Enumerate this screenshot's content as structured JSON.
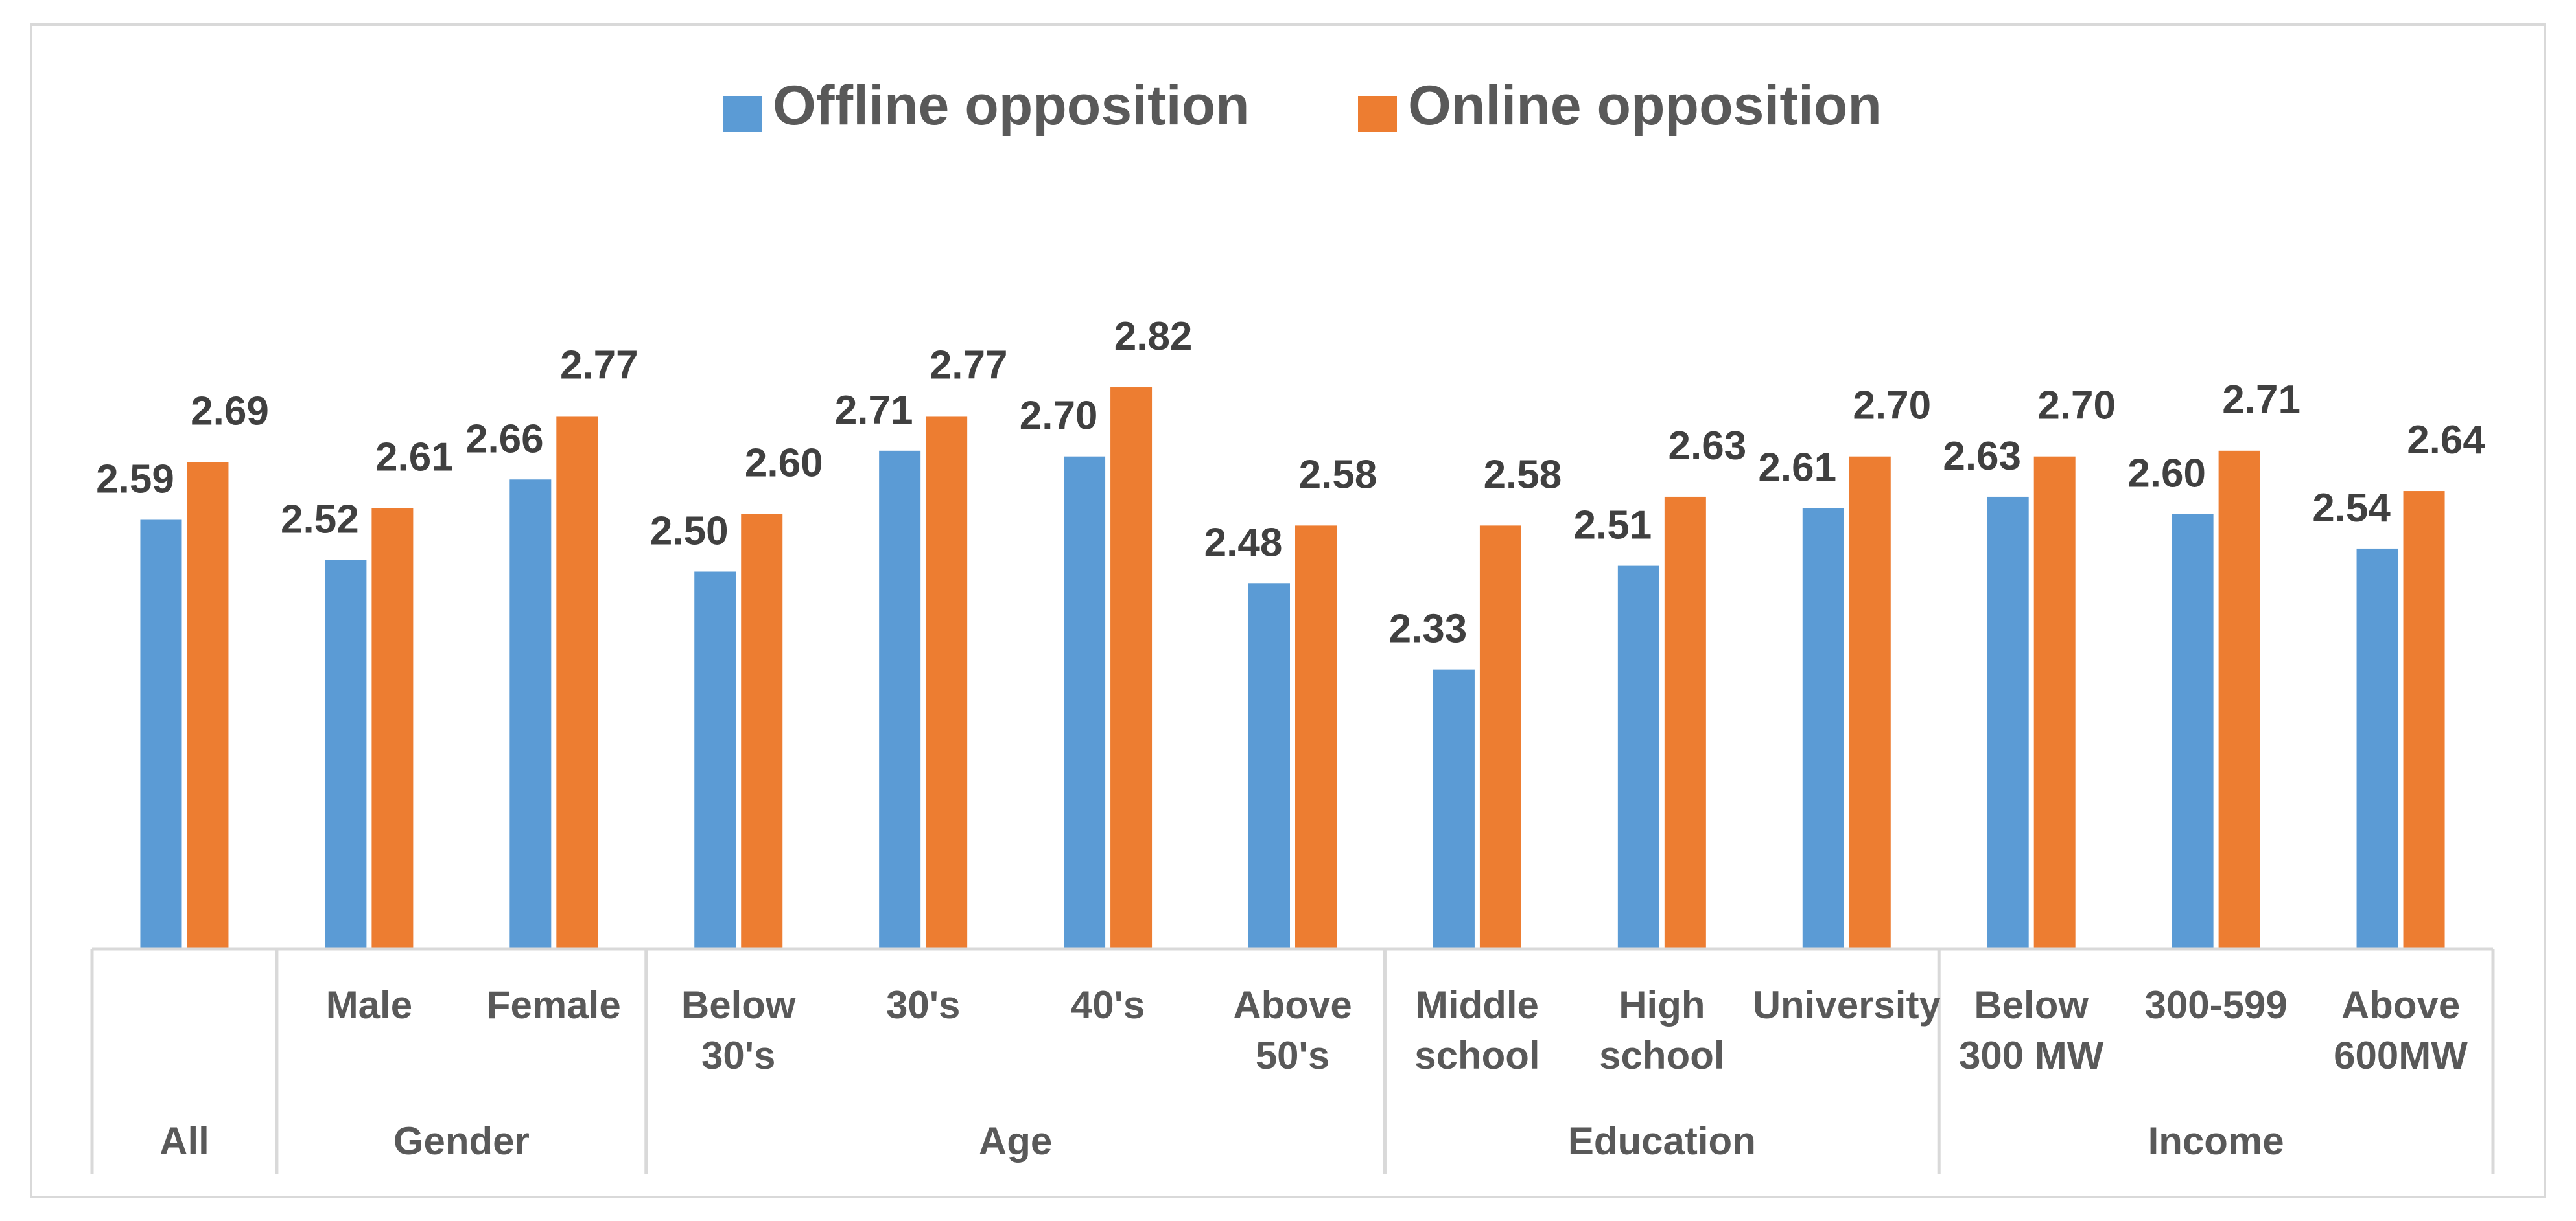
{
  "chart_data": {
    "type": "bar",
    "title": "",
    "xlabel": "",
    "ylabel": "",
    "ylim": [
      0,
      3.0
    ],
    "grid": false,
    "legend_position": "top-center",
    "groups": [
      {
        "name": "All",
        "categories": [
          ""
        ]
      },
      {
        "name": "Gender",
        "categories": [
          "Male",
          "Female"
        ]
      },
      {
        "name": "Age",
        "categories": [
          "Below 30's",
          "30's",
          "40's",
          "Above 50's"
        ]
      },
      {
        "name": "Education",
        "categories": [
          "Middle school",
          "High school",
          "University"
        ]
      },
      {
        "name": "Income",
        "categories": [
          "Below 300 MW",
          "300-599",
          "Above 600MW"
        ]
      }
    ],
    "categories": [
      "All",
      "Male",
      "Female",
      "Below 30's",
      "30's",
      "40's",
      "Above 50's",
      "Middle school",
      "High school",
      "University",
      "Below 300 MW",
      "300-599",
      "Above 600MW"
    ],
    "category_lines": [
      [
        ""
      ],
      [
        "Male"
      ],
      [
        "Female"
      ],
      [
        "Below",
        "30's"
      ],
      [
        "30's"
      ],
      [
        "40's"
      ],
      [
        "Above",
        "50's"
      ],
      [
        "Middle",
        "school"
      ],
      [
        "High",
        "school"
      ],
      [
        "University"
      ],
      [
        "Below",
        "300 MW"
      ],
      [
        "300-599"
      ],
      [
        "Above",
        "600MW"
      ]
    ],
    "series": [
      {
        "name": "Offline opposition",
        "color": "#5B9BD5",
        "values": [
          2.59,
          2.52,
          2.66,
          2.5,
          2.71,
          2.7,
          2.48,
          2.33,
          2.51,
          2.61,
          2.63,
          2.6,
          2.54
        ],
        "labels": [
          "2.59",
          "2.52",
          "2.66",
          "2.50",
          "2.71",
          "2.70",
          "2.48",
          "2.33",
          "2.51",
          "2.61",
          "2.63",
          "2.60",
          "2.54"
        ]
      },
      {
        "name": "Online opposition",
        "color": "#ED7D31",
        "values": [
          2.69,
          2.61,
          2.77,
          2.6,
          2.77,
          2.82,
          2.58,
          2.58,
          2.63,
          2.7,
          2.7,
          2.71,
          2.64
        ],
        "labels": [
          "2.69",
          "2.61",
          "2.77",
          "2.60",
          "2.77",
          "2.82",
          "2.58",
          "2.58",
          "2.63",
          "2.70",
          "2.70",
          "2.71",
          "2.64"
        ]
      }
    ]
  }
}
